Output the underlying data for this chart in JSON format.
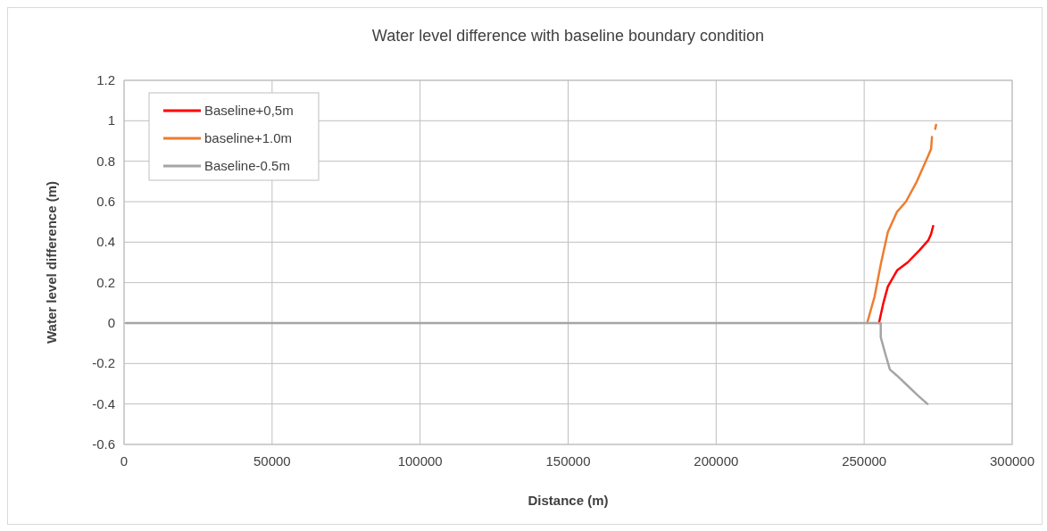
{
  "chart_data": {
    "type": "line",
    "title": "Water level difference with baseline boundary condition",
    "xlabel": "Distance (m)",
    "ylabel": "Water level difference (m)",
    "xlim": [
      0,
      300000
    ],
    "xticks": [
      0,
      50000,
      100000,
      150000,
      200000,
      250000,
      300000
    ],
    "ylim": [
      -0.6,
      1.2
    ],
    "yticks": [
      -0.6,
      -0.4,
      -0.2,
      0,
      0.2,
      0.4,
      0.6,
      0.8,
      1,
      1.2
    ],
    "grid": true,
    "legend": "top left",
    "marker": "none",
    "line_style": "solid",
    "series": [
      {
        "name": "Baseline+0,5m",
        "color": "#ff0000",
        "x": [
          255000,
          256500,
          258000,
          261100,
          264700,
          268700,
          271700,
          272600,
          273300
        ],
        "values": [
          0,
          0.1,
          0.18,
          0.26,
          0.3,
          0.36,
          0.41,
          0.44,
          0.48
        ]
      },
      {
        "name": "baseline+1.0m",
        "color": "#ed7d31",
        "x": [
          251000,
          253500,
          255600,
          258000,
          261100,
          264100,
          267800,
          271400,
          272600,
          272900,
          273600,
          274000,
          274300
        ],
        "values": [
          0,
          0.13,
          0.29,
          0.45,
          0.55,
          0.6,
          0.7,
          0.82,
          0.86,
          0.92,
          null,
          0.96,
          0.98
        ]
      },
      {
        "name": "Baseline-0.5m",
        "color": "#a5a5a5",
        "x": [
          600,
          255600,
          255600,
          257100,
          258700,
          261100,
          264700,
          268300,
          271400
        ],
        "values": [
          0,
          0,
          -0.07,
          -0.15,
          -0.23,
          -0.26,
          -0.31,
          -0.36,
          -0.4
        ]
      }
    ]
  }
}
